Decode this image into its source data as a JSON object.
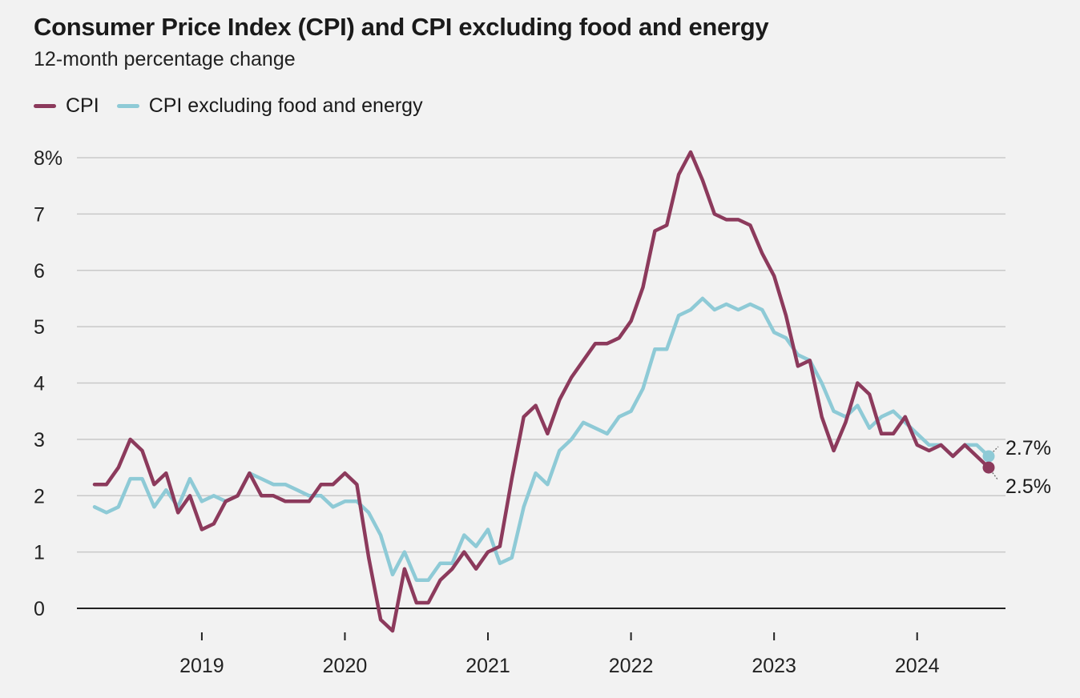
{
  "title": "Consumer Price Index (CPI) and CPI excluding food and energy",
  "subtitle": "12-month percentage change",
  "colors": {
    "cpi": "#8c3a5c",
    "core": "#8ecad6",
    "grid": "#c9c9c9",
    "axis": "#222222",
    "background": "#f2f2f2"
  },
  "chart_data": {
    "type": "line",
    "title": "Consumer Price Index (CPI) and CPI excluding food and energy",
    "subtitle": "12-month percentage change",
    "x_start": "2018-04",
    "x_end": "2024-07",
    "x_frequency": "monthly",
    "x_ticks": [
      "2019",
      "2020",
      "2021",
      "2022",
      "2023",
      "2024"
    ],
    "ylim": [
      0,
      8
    ],
    "y_ticks": [
      0,
      1,
      2,
      3,
      4,
      5,
      6,
      7,
      8
    ],
    "y_tick_labels": [
      "0",
      "1",
      "2",
      "3",
      "4",
      "5",
      "6",
      "7",
      "8%"
    ],
    "grid": true,
    "legend_position": "top-left",
    "series": [
      {
        "name": "CPI",
        "color": "#8c3a5c",
        "end_label": "2.5%",
        "values": [
          2.2,
          2.2,
          2.5,
          3.0,
          2.8,
          2.2,
          2.4,
          1.7,
          2.0,
          1.4,
          1.5,
          1.9,
          2.0,
          2.4,
          2.0,
          2.0,
          1.9,
          1.9,
          1.9,
          2.2,
          2.2,
          2.4,
          2.2,
          0.9,
          -0.2,
          -0.4,
          0.7,
          0.1,
          0.1,
          0.5,
          0.7,
          1.0,
          0.7,
          1.0,
          1.1,
          2.3,
          3.4,
          3.6,
          3.1,
          3.7,
          4.1,
          4.4,
          4.7,
          4.7,
          4.8,
          5.1,
          5.7,
          6.7,
          6.8,
          7.7,
          8.1,
          7.6,
          7.0,
          6.9,
          6.9,
          6.8,
          6.3,
          5.9,
          5.2,
          4.3,
          4.4,
          3.4,
          2.8,
          3.3,
          4.0,
          3.8,
          3.1,
          3.1,
          3.4,
          2.9,
          2.8,
          2.9,
          2.7,
          2.9,
          2.7,
          2.5
        ]
      },
      {
        "name": "CPI excluding food and energy",
        "color": "#8ecad6",
        "end_label": "2.7%",
        "values": [
          1.8,
          1.7,
          1.8,
          2.3,
          2.3,
          1.8,
          2.1,
          1.8,
          2.3,
          1.9,
          2.0,
          1.9,
          2.0,
          2.4,
          2.3,
          2.2,
          2.2,
          2.1,
          2.0,
          2.0,
          1.8,
          1.9,
          1.9,
          1.7,
          1.3,
          0.6,
          1.0,
          0.5,
          0.5,
          0.8,
          0.8,
          1.3,
          1.1,
          1.4,
          0.8,
          0.9,
          1.8,
          2.4,
          2.2,
          2.8,
          3.0,
          3.3,
          3.2,
          3.1,
          3.4,
          3.5,
          3.9,
          4.6,
          4.6,
          5.2,
          5.3,
          5.5,
          5.3,
          5.4,
          5.3,
          5.4,
          5.3,
          4.9,
          4.8,
          4.5,
          4.4,
          4.0,
          3.5,
          3.4,
          3.6,
          3.2,
          3.4,
          3.5,
          3.3,
          3.1,
          2.9,
          2.9,
          2.7,
          2.9,
          2.9,
          2.7
        ]
      }
    ]
  }
}
